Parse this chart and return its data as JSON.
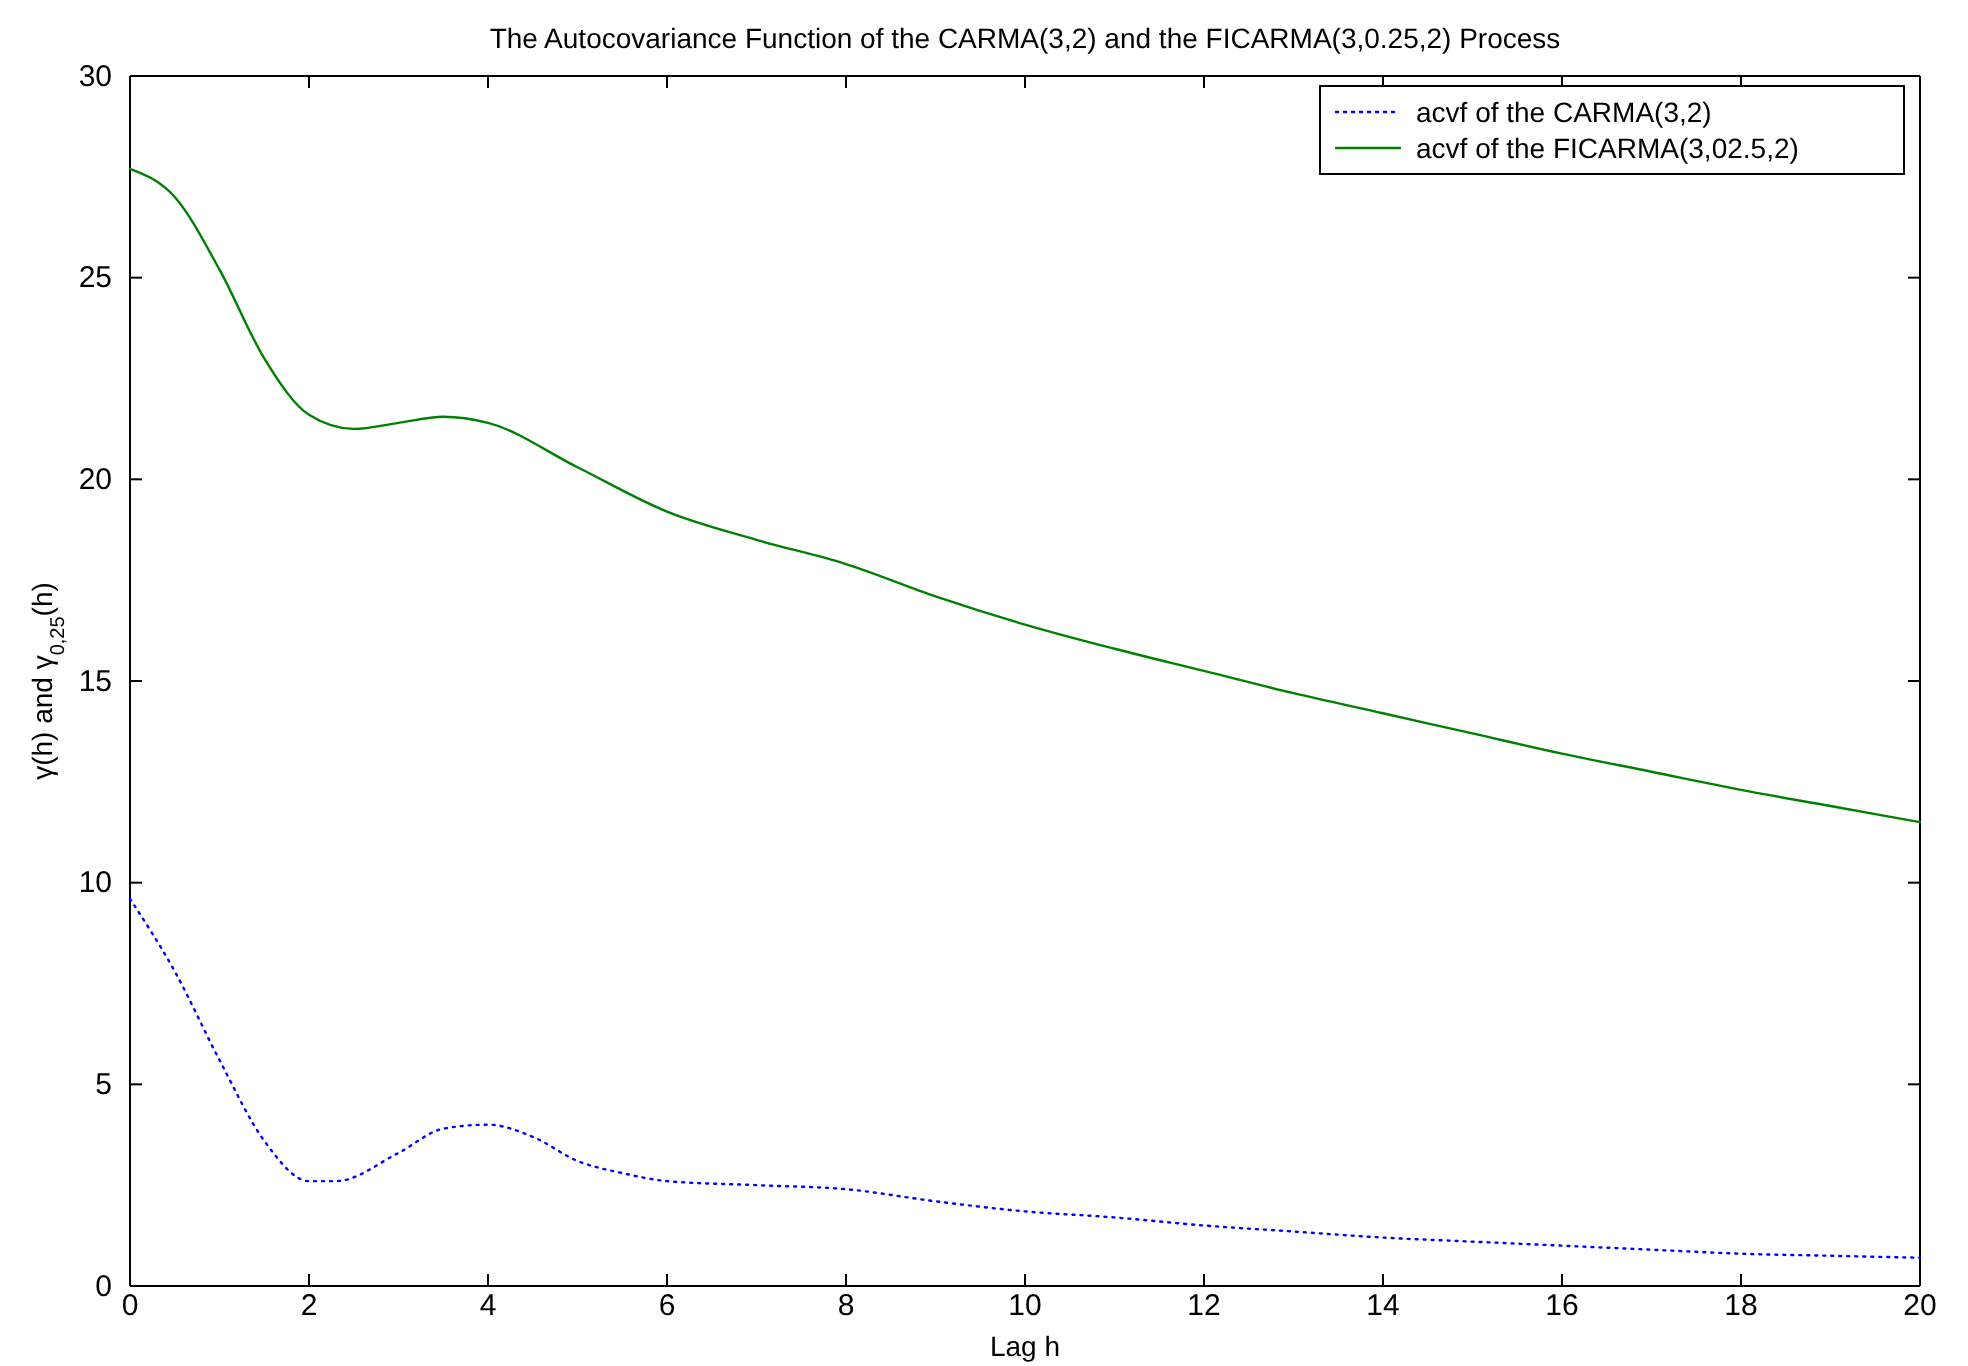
{
  "chart_data": {
    "type": "line",
    "title": "The Autocovariance Function of the CARMA(3,2) and the FICARMA(3,0.25,2) Process",
    "xlabel": "Lag h",
    "ylabel": "γ(h) and γ$_{0,25}$(h)",
    "xlim": [
      0,
      20
    ],
    "ylim": [
      0,
      30
    ],
    "xticks": [
      0,
      2,
      4,
      6,
      8,
      10,
      12,
      14,
      16,
      18,
      20
    ],
    "yticks": [
      0,
      5,
      10,
      15,
      20,
      25,
      30
    ],
    "grid": false,
    "legend": "top right",
    "series": [
      {
        "name": "acvf of the CARMA(3,2)",
        "color": "#0000ff",
        "line_style": "dotted",
        "x": [
          0,
          0.5,
          1,
          1.5,
          2,
          2.3,
          3,
          3.5,
          4,
          4.5,
          5,
          5.5,
          6,
          7,
          8,
          9,
          10,
          11,
          12,
          13,
          14,
          15,
          16,
          17,
          18,
          19,
          20
        ],
        "values": [
          9.6,
          7.8,
          5.6,
          3.6,
          2.6,
          2.6,
          3.3,
          3.9,
          4.0,
          3.7,
          3.1,
          2.8,
          2.6,
          2.5,
          2.4,
          2.1,
          1.85,
          1.7,
          1.5,
          1.35,
          1.2,
          1.1,
          1.0,
          0.9,
          0.8,
          0.75,
          0.7
        ]
      },
      {
        "name": "acvf of the FICARMA(3,02.5,2)",
        "color": "#008000",
        "line_style": "solid",
        "x": [
          0,
          0.5,
          1,
          1.5,
          2,
          2.5,
          3,
          3.5,
          4,
          5,
          6,
          7,
          8,
          9,
          10,
          11,
          12,
          13,
          14,
          15,
          16,
          17,
          18,
          19,
          20
        ],
        "values": [
          27.7,
          27.0,
          25.2,
          23.0,
          21.6,
          21.25,
          21.4,
          21.55,
          21.4,
          20.3,
          19.2,
          18.5,
          17.9,
          17.1,
          16.4,
          15.8,
          15.25,
          14.7,
          14.2,
          13.7,
          13.2,
          12.75,
          12.3,
          11.9,
          11.5
        ]
      }
    ]
  }
}
